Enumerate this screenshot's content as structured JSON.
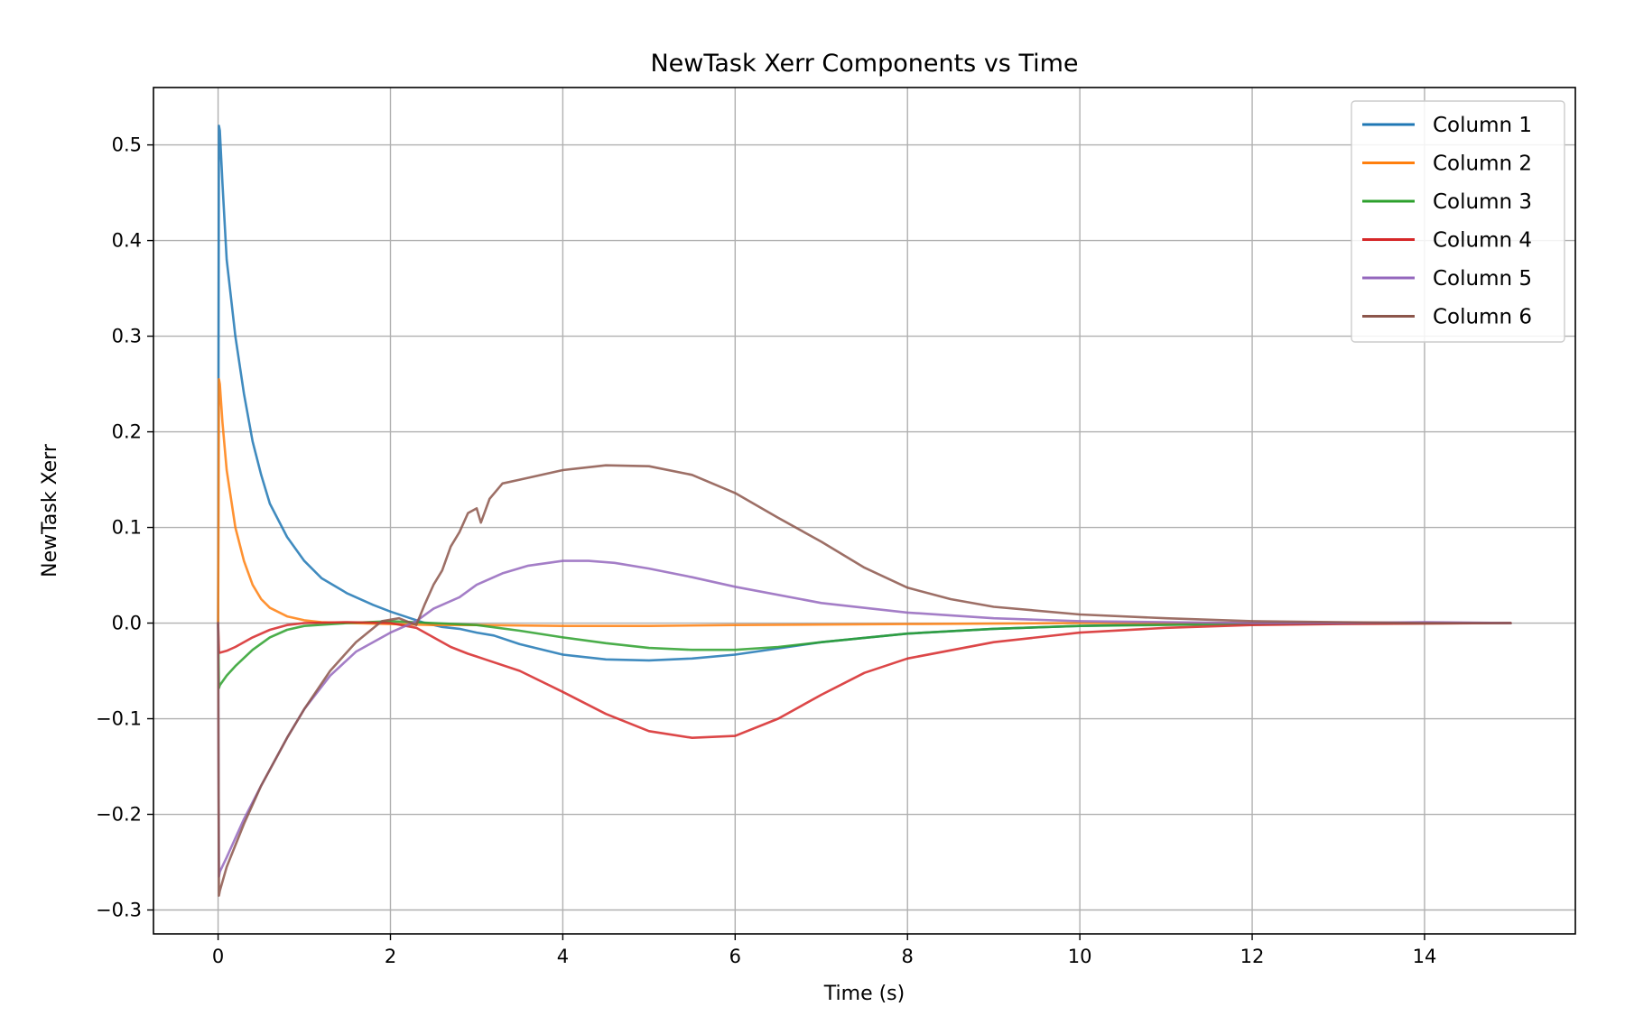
{
  "chart_data": {
    "type": "line",
    "title": "NewTask Xerr Components vs Time",
    "xlabel": "Time (s)",
    "ylabel": "NewTask Xerr",
    "xlim": [
      -0.75,
      15.75
    ],
    "ylim": [
      -0.325,
      0.56
    ],
    "x_ticks": [
      0,
      2,
      4,
      6,
      8,
      10,
      12,
      14
    ],
    "x_tick_labels": [
      "0",
      "2",
      "4",
      "6",
      "8",
      "10",
      "12",
      "14"
    ],
    "y_ticks": [
      -0.3,
      -0.2,
      -0.1,
      0.0,
      0.1,
      0.2,
      0.3,
      0.4,
      0.5
    ],
    "y_tick_labels": [
      "−0.3",
      "−0.2",
      "−0.1",
      "0.0",
      "0.1",
      "0.2",
      "0.3",
      "0.4",
      "0.5"
    ],
    "grid": true,
    "legend_position": "top-right",
    "series": [
      {
        "name": "Column 1",
        "color": "#1f77b4",
        "x": [
          0,
          0.01,
          0.02,
          0.05,
          0.1,
          0.2,
          0.3,
          0.4,
          0.5,
          0.6,
          0.8,
          1.0,
          1.2,
          1.5,
          1.8,
          2.0,
          2.2,
          2.4,
          2.6,
          2.8,
          3.0,
          3.2,
          3.5,
          4.0,
          4.5,
          5.0,
          5.5,
          6.0,
          7.0,
          8.0,
          9.0,
          10.0,
          11.0,
          12.0,
          13.0,
          14.0,
          15.0
        ],
        "y": [
          0.0,
          0.52,
          0.515,
          0.46,
          0.38,
          0.3,
          0.24,
          0.19,
          0.155,
          0.125,
          0.09,
          0.065,
          0.047,
          0.031,
          0.019,
          0.012,
          0.006,
          0.0,
          -0.004,
          -0.006,
          -0.01,
          -0.013,
          -0.022,
          -0.033,
          -0.038,
          -0.039,
          -0.037,
          -0.033,
          -0.02,
          -0.011,
          -0.006,
          -0.003,
          -0.001,
          0.0,
          0.0,
          0.0,
          0.0
        ]
      },
      {
        "name": "Column 2",
        "color": "#ff7f0e",
        "x": [
          0,
          0.01,
          0.02,
          0.05,
          0.1,
          0.2,
          0.3,
          0.4,
          0.5,
          0.6,
          0.8,
          1.0,
          1.2,
          1.5,
          2.0,
          2.5,
          3.0,
          4.0,
          5.0,
          6.0,
          8.0,
          10.0,
          12.0,
          15.0
        ],
        "y": [
          0.0,
          0.255,
          0.25,
          0.21,
          0.16,
          0.1,
          0.065,
          0.04,
          0.025,
          0.016,
          0.007,
          0.003,
          0.001,
          0.0,
          -0.001,
          -0.002,
          -0.002,
          -0.003,
          -0.003,
          -0.002,
          -0.001,
          0.0,
          0.0,
          0.0
        ]
      },
      {
        "name": "Column 3",
        "color": "#2ca02c",
        "x": [
          0,
          0.01,
          0.02,
          0.1,
          0.2,
          0.4,
          0.6,
          0.8,
          1.0,
          1.5,
          2.0,
          2.5,
          3.0,
          3.5,
          4.0,
          4.5,
          5.0,
          5.5,
          6.0,
          6.5,
          7.0,
          8.0,
          9.0,
          10.0,
          12.0,
          15.0
        ],
        "y": [
          0.0,
          -0.068,
          -0.065,
          -0.055,
          -0.045,
          -0.028,
          -0.015,
          -0.007,
          -0.003,
          0.0,
          0.002,
          0.0,
          -0.002,
          -0.008,
          -0.015,
          -0.021,
          -0.026,
          -0.028,
          -0.028,
          -0.025,
          -0.02,
          -0.011,
          -0.006,
          -0.003,
          -0.001,
          0.0
        ]
      },
      {
        "name": "Column 4",
        "color": "#d62728",
        "x": [
          0,
          0.01,
          0.02,
          0.1,
          0.2,
          0.4,
          0.6,
          0.8,
          1.0,
          1.5,
          2.0,
          2.3,
          2.5,
          2.7,
          2.9,
          3.0,
          3.1,
          3.5,
          4.0,
          4.5,
          5.0,
          5.5,
          6.0,
          6.5,
          7.0,
          7.5,
          8.0,
          9.0,
          10.0,
          11.0,
          12.0,
          13.0,
          15.0
        ],
        "y": [
          0.0,
          -0.03,
          -0.031,
          -0.029,
          -0.025,
          -0.015,
          -0.007,
          -0.002,
          0.0,
          0.001,
          0.0,
          -0.005,
          -0.015,
          -0.025,
          -0.032,
          -0.035,
          -0.038,
          -0.05,
          -0.072,
          -0.095,
          -0.113,
          -0.12,
          -0.118,
          -0.1,
          -0.075,
          -0.052,
          -0.037,
          -0.02,
          -0.01,
          -0.005,
          -0.002,
          -0.001,
          0.0
        ]
      },
      {
        "name": "Column 5",
        "color": "#9467bd",
        "x": [
          0,
          0.01,
          0.02,
          0.1,
          0.3,
          0.5,
          0.8,
          1.0,
          1.3,
          1.6,
          2.0,
          2.3,
          2.5,
          2.8,
          3.0,
          3.3,
          3.6,
          4.0,
          4.3,
          4.6,
          5.0,
          5.5,
          6.0,
          7.0,
          8.0,
          9.0,
          10.0,
          11.0,
          12.0,
          13.0,
          14.0,
          15.0
        ],
        "y": [
          0.0,
          -0.265,
          -0.26,
          -0.245,
          -0.205,
          -0.17,
          -0.12,
          -0.09,
          -0.055,
          -0.03,
          -0.01,
          0.002,
          0.015,
          0.027,
          0.04,
          0.052,
          0.06,
          0.065,
          0.065,
          0.063,
          0.057,
          0.048,
          0.038,
          0.021,
          0.011,
          0.005,
          0.002,
          0.001,
          0.0,
          0.0,
          0.001,
          0.0
        ]
      },
      {
        "name": "Column 6",
        "color": "#8c564b",
        "x": [
          0,
          0.01,
          0.02,
          0.1,
          0.3,
          0.5,
          0.8,
          1.0,
          1.3,
          1.6,
          1.9,
          2.1,
          2.3,
          2.4,
          2.5,
          2.6,
          2.7,
          2.8,
          2.9,
          3.0,
          3.05,
          3.15,
          3.3,
          3.5,
          4.0,
          4.5,
          5.0,
          5.5,
          6.0,
          6.5,
          7.0,
          7.5,
          8.0,
          8.5,
          9.0,
          10.0,
          11.0,
          12.0,
          13.0,
          14.0,
          15.0
        ],
        "y": [
          0.0,
          -0.285,
          -0.28,
          -0.255,
          -0.21,
          -0.17,
          -0.12,
          -0.09,
          -0.05,
          -0.02,
          0.002,
          0.005,
          -0.002,
          0.02,
          0.04,
          0.055,
          0.08,
          0.095,
          0.115,
          0.12,
          0.105,
          0.13,
          0.146,
          0.15,
          0.16,
          0.165,
          0.164,
          0.155,
          0.136,
          0.11,
          0.085,
          0.058,
          0.037,
          0.025,
          0.017,
          0.009,
          0.005,
          0.002,
          0.001,
          0.0,
          0.0
        ]
      }
    ]
  }
}
